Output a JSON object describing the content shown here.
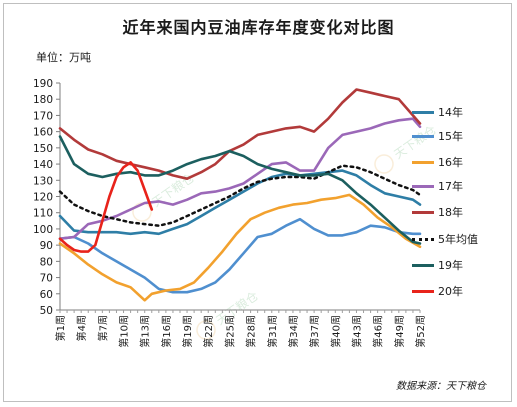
{
  "title": "近年来国内豆油库存年度变化对比图",
  "unit_label": "单位：万吨",
  "source_label": "数据来源：天下粮仓",
  "watermark_text": "天下粮仓",
  "chart_data": {
    "type": "line",
    "ylim": [
      50,
      190
    ],
    "yticks": [
      50,
      60,
      70,
      80,
      90,
      100,
      110,
      120,
      130,
      140,
      150,
      160,
      170,
      180,
      190
    ],
    "x_count": 52,
    "x_tick_weeks": [
      1,
      4,
      7,
      10,
      13,
      16,
      19,
      22,
      25,
      28,
      31,
      34,
      37,
      40,
      43,
      46,
      49,
      52
    ],
    "x_tick_labels": [
      "第1周",
      "第4周",
      "第7周",
      "第10周",
      "第13周",
      "第16周",
      "第19周",
      "第22周",
      "第25周",
      "第28周",
      "第31周",
      "第34周",
      "第37周",
      "第40周",
      "第43周",
      "第46周",
      "第49周",
      "第52周"
    ],
    "grid": false,
    "legend_position": "right",
    "series": [
      {
        "name": "14年",
        "color": "#2e7ea6",
        "dash": false,
        "points": [
          [
            1,
            108
          ],
          [
            3,
            99
          ],
          [
            5,
            98
          ],
          [
            7,
            98
          ],
          [
            9,
            98
          ],
          [
            11,
            97
          ],
          [
            13,
            98
          ],
          [
            15,
            97
          ],
          [
            17,
            100
          ],
          [
            19,
            103
          ],
          [
            21,
            108
          ],
          [
            23,
            113
          ],
          [
            25,
            118
          ],
          [
            27,
            123
          ],
          [
            29,
            128
          ],
          [
            31,
            132
          ],
          [
            33,
            134
          ],
          [
            35,
            133
          ],
          [
            37,
            134
          ],
          [
            39,
            135
          ],
          [
            41,
            136
          ],
          [
            43,
            133
          ],
          [
            45,
            127
          ],
          [
            47,
            122
          ],
          [
            49,
            120
          ],
          [
            51,
            118
          ],
          [
            52,
            115
          ]
        ]
      },
      {
        "name": "15年",
        "color": "#4f8fcf",
        "dash": false,
        "points": [
          [
            1,
            94
          ],
          [
            3,
            95
          ],
          [
            5,
            91
          ],
          [
            7,
            85
          ],
          [
            9,
            80
          ],
          [
            11,
            75
          ],
          [
            13,
            70
          ],
          [
            15,
            63
          ],
          [
            17,
            61
          ],
          [
            19,
            61
          ],
          [
            21,
            63
          ],
          [
            23,
            67
          ],
          [
            25,
            75
          ],
          [
            27,
            85
          ],
          [
            29,
            95
          ],
          [
            31,
            97
          ],
          [
            33,
            102
          ],
          [
            35,
            106
          ],
          [
            37,
            100
          ],
          [
            39,
            96
          ],
          [
            41,
            96
          ],
          [
            43,
            98
          ],
          [
            45,
            102
          ],
          [
            47,
            101
          ],
          [
            49,
            98
          ],
          [
            51,
            97
          ],
          [
            52,
            97
          ]
        ]
      },
      {
        "name": "16年",
        "color": "#f2a12e",
        "dash": false,
        "points": [
          [
            1,
            91
          ],
          [
            3,
            85
          ],
          [
            5,
            78
          ],
          [
            7,
            72
          ],
          [
            9,
            67
          ],
          [
            11,
            64
          ],
          [
            13,
            56
          ],
          [
            14,
            60
          ],
          [
            16,
            62
          ],
          [
            18,
            63
          ],
          [
            20,
            67
          ],
          [
            22,
            76
          ],
          [
            24,
            86
          ],
          [
            26,
            97
          ],
          [
            28,
            106
          ],
          [
            30,
            110
          ],
          [
            32,
            113
          ],
          [
            34,
            115
          ],
          [
            36,
            116
          ],
          [
            38,
            118
          ],
          [
            40,
            119
          ],
          [
            42,
            121
          ],
          [
            44,
            115
          ],
          [
            46,
            107
          ],
          [
            48,
            101
          ],
          [
            50,
            94
          ],
          [
            52,
            89
          ]
        ]
      },
      {
        "name": "17年",
        "color": "#9b68b8",
        "dash": false,
        "points": [
          [
            1,
            94
          ],
          [
            3,
            95
          ],
          [
            5,
            103
          ],
          [
            7,
            105
          ],
          [
            9,
            108
          ],
          [
            11,
            112
          ],
          [
            13,
            116
          ],
          [
            15,
            117
          ],
          [
            17,
            115
          ],
          [
            19,
            118
          ],
          [
            21,
            122
          ],
          [
            23,
            123
          ],
          [
            25,
            125
          ],
          [
            27,
            128
          ],
          [
            29,
            134
          ],
          [
            31,
            140
          ],
          [
            33,
            141
          ],
          [
            35,
            136
          ],
          [
            37,
            136
          ],
          [
            39,
            150
          ],
          [
            41,
            158
          ],
          [
            43,
            160
          ],
          [
            45,
            162
          ],
          [
            47,
            165
          ],
          [
            49,
            167
          ],
          [
            51,
            168
          ],
          [
            52,
            163
          ]
        ]
      },
      {
        "name": "18年",
        "color": "#b23a3a",
        "dash": false,
        "points": [
          [
            1,
            162
          ],
          [
            3,
            155
          ],
          [
            5,
            149
          ],
          [
            7,
            146
          ],
          [
            9,
            142
          ],
          [
            11,
            140
          ],
          [
            13,
            138
          ],
          [
            15,
            136
          ],
          [
            17,
            133
          ],
          [
            19,
            131
          ],
          [
            21,
            135
          ],
          [
            23,
            140
          ],
          [
            25,
            148
          ],
          [
            27,
            152
          ],
          [
            29,
            158
          ],
          [
            31,
            160
          ],
          [
            33,
            162
          ],
          [
            35,
            163
          ],
          [
            37,
            160
          ],
          [
            39,
            168
          ],
          [
            41,
            178
          ],
          [
            43,
            186
          ],
          [
            45,
            184
          ],
          [
            47,
            182
          ],
          [
            49,
            180
          ],
          [
            51,
            170
          ],
          [
            52,
            165
          ]
        ]
      },
      {
        "name": "5年均值",
        "color": "#111111",
        "dash": true,
        "points": [
          [
            1,
            123
          ],
          [
            3,
            115
          ],
          [
            5,
            111
          ],
          [
            7,
            108
          ],
          [
            9,
            106
          ],
          [
            11,
            104
          ],
          [
            13,
            103
          ],
          [
            15,
            102
          ],
          [
            17,
            104
          ],
          [
            19,
            108
          ],
          [
            21,
            112
          ],
          [
            23,
            116
          ],
          [
            25,
            120
          ],
          [
            27,
            125
          ],
          [
            29,
            129
          ],
          [
            31,
            131
          ],
          [
            33,
            132
          ],
          [
            35,
            132
          ],
          [
            37,
            131
          ],
          [
            39,
            135
          ],
          [
            41,
            139
          ],
          [
            43,
            138
          ],
          [
            45,
            135
          ],
          [
            47,
            131
          ],
          [
            49,
            127
          ],
          [
            51,
            124
          ],
          [
            52,
            121
          ]
        ]
      },
      {
        "name": "19年",
        "color": "#1c5f5f",
        "dash": false,
        "points": [
          [
            1,
            157
          ],
          [
            3,
            140
          ],
          [
            5,
            134
          ],
          [
            7,
            132
          ],
          [
            9,
            134
          ],
          [
            11,
            135
          ],
          [
            13,
            133
          ],
          [
            15,
            133
          ],
          [
            17,
            136
          ],
          [
            19,
            140
          ],
          [
            21,
            143
          ],
          [
            23,
            145
          ],
          [
            25,
            148
          ],
          [
            27,
            145
          ],
          [
            29,
            140
          ],
          [
            31,
            137
          ],
          [
            33,
            135
          ],
          [
            35,
            133
          ],
          [
            37,
            133
          ],
          [
            39,
            134
          ],
          [
            41,
            130
          ],
          [
            43,
            122
          ],
          [
            45,
            115
          ],
          [
            47,
            107
          ],
          [
            49,
            99
          ],
          [
            51,
            92
          ],
          [
            52,
            91
          ]
        ]
      },
      {
        "name": "20年",
        "color": "#e8231b",
        "dash": false,
        "points": [
          [
            1,
            94
          ],
          [
            2,
            90
          ],
          [
            3,
            87
          ],
          [
            4,
            86
          ],
          [
            5,
            86
          ],
          [
            6,
            90
          ],
          [
            7,
            105
          ],
          [
            8,
            120
          ],
          [
            9,
            132
          ],
          [
            10,
            138
          ],
          [
            11,
            141
          ],
          [
            12,
            136
          ],
          [
            13,
            124
          ],
          [
            14,
            112
          ]
        ]
      }
    ]
  }
}
